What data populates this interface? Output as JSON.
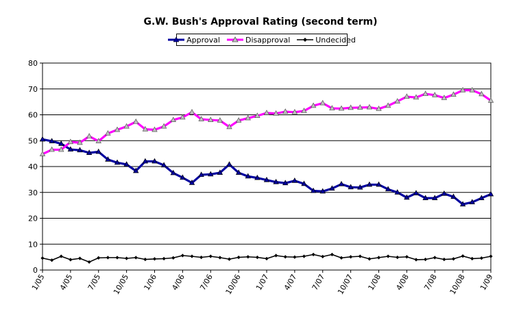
{
  "chart_data": {
    "type": "line",
    "title": "G.W. Bush's Approval Rating (second term)",
    "xlabel": "",
    "ylabel": "",
    "ylim": [
      0,
      80
    ],
    "yticks": [
      0,
      10,
      20,
      30,
      40,
      50,
      60,
      70,
      80
    ],
    "xtick_labels": [
      "1/05",
      "4/05",
      "7/05",
      "10/05",
      "1/06",
      "4/06",
      "7/06",
      "10/06",
      "1/07",
      "4/07",
      "7/07",
      "10/07",
      "1/08",
      "4/08",
      "7/08",
      "10/08",
      "1/09"
    ],
    "grid": "horizontal",
    "legend_position": "top",
    "series": [
      {
        "name": "Approval",
        "color": "#0000a0",
        "marker": "triangle",
        "values": [
          50.5,
          49.8,
          48.8,
          46.6,
          46.3,
          45.3,
          45.7,
          42.7,
          41.5,
          40.8,
          38.3,
          42.0,
          42.0,
          40.5,
          37.5,
          35.7,
          33.7,
          36.8,
          37.0,
          37.6,
          40.8,
          37.6,
          36.2,
          35.6,
          34.8,
          34.0,
          33.6,
          34.5,
          33.3,
          30.6,
          30.4,
          31.5,
          33.2,
          32.0,
          31.9,
          33.0,
          33.0,
          31.2,
          30.0,
          28.0,
          29.7,
          27.8,
          27.8,
          29.5,
          28.3,
          25.4,
          26.2,
          27.8,
          29.3
        ]
      },
      {
        "name": "Disapproval",
        "color": "#ff00ff",
        "marker": "triangle",
        "values": [
          44.8,
          46.5,
          46.5,
          49.5,
          49.2,
          51.7,
          49.8,
          52.8,
          54.2,
          55.5,
          57.3,
          54.4,
          54.2,
          55.5,
          58.0,
          59.0,
          61.0,
          58.3,
          58.0,
          57.8,
          55.3,
          57.8,
          58.7,
          59.6,
          60.7,
          60.5,
          61.2,
          61.0,
          61.5,
          63.5,
          64.5,
          62.5,
          62.4,
          62.7,
          62.8,
          62.9,
          62.3,
          63.5,
          65.2,
          67.0,
          66.7,
          68.1,
          67.6,
          66.5,
          67.8,
          69.5,
          69.5,
          68.0,
          65.5
        ]
      },
      {
        "name": "Undecided",
        "color": "#000000",
        "marker": "diamond",
        "values": [
          4.6,
          3.8,
          5.3,
          4.0,
          4.5,
          3.1,
          4.7,
          4.8,
          4.8,
          4.5,
          4.8,
          4.1,
          4.3,
          4.4,
          4.7,
          5.6,
          5.3,
          4.9,
          5.3,
          4.8,
          4.2,
          4.9,
          5.1,
          4.9,
          4.4,
          5.6,
          5.1,
          5.0,
          5.3,
          6.0,
          5.2,
          6.0,
          4.7,
          5.1,
          5.3,
          4.3,
          4.8,
          5.3,
          4.9,
          5.1,
          4.0,
          4.1,
          4.8,
          4.1,
          4.3,
          5.4,
          4.4,
          4.6,
          5.3
        ]
      }
    ]
  }
}
